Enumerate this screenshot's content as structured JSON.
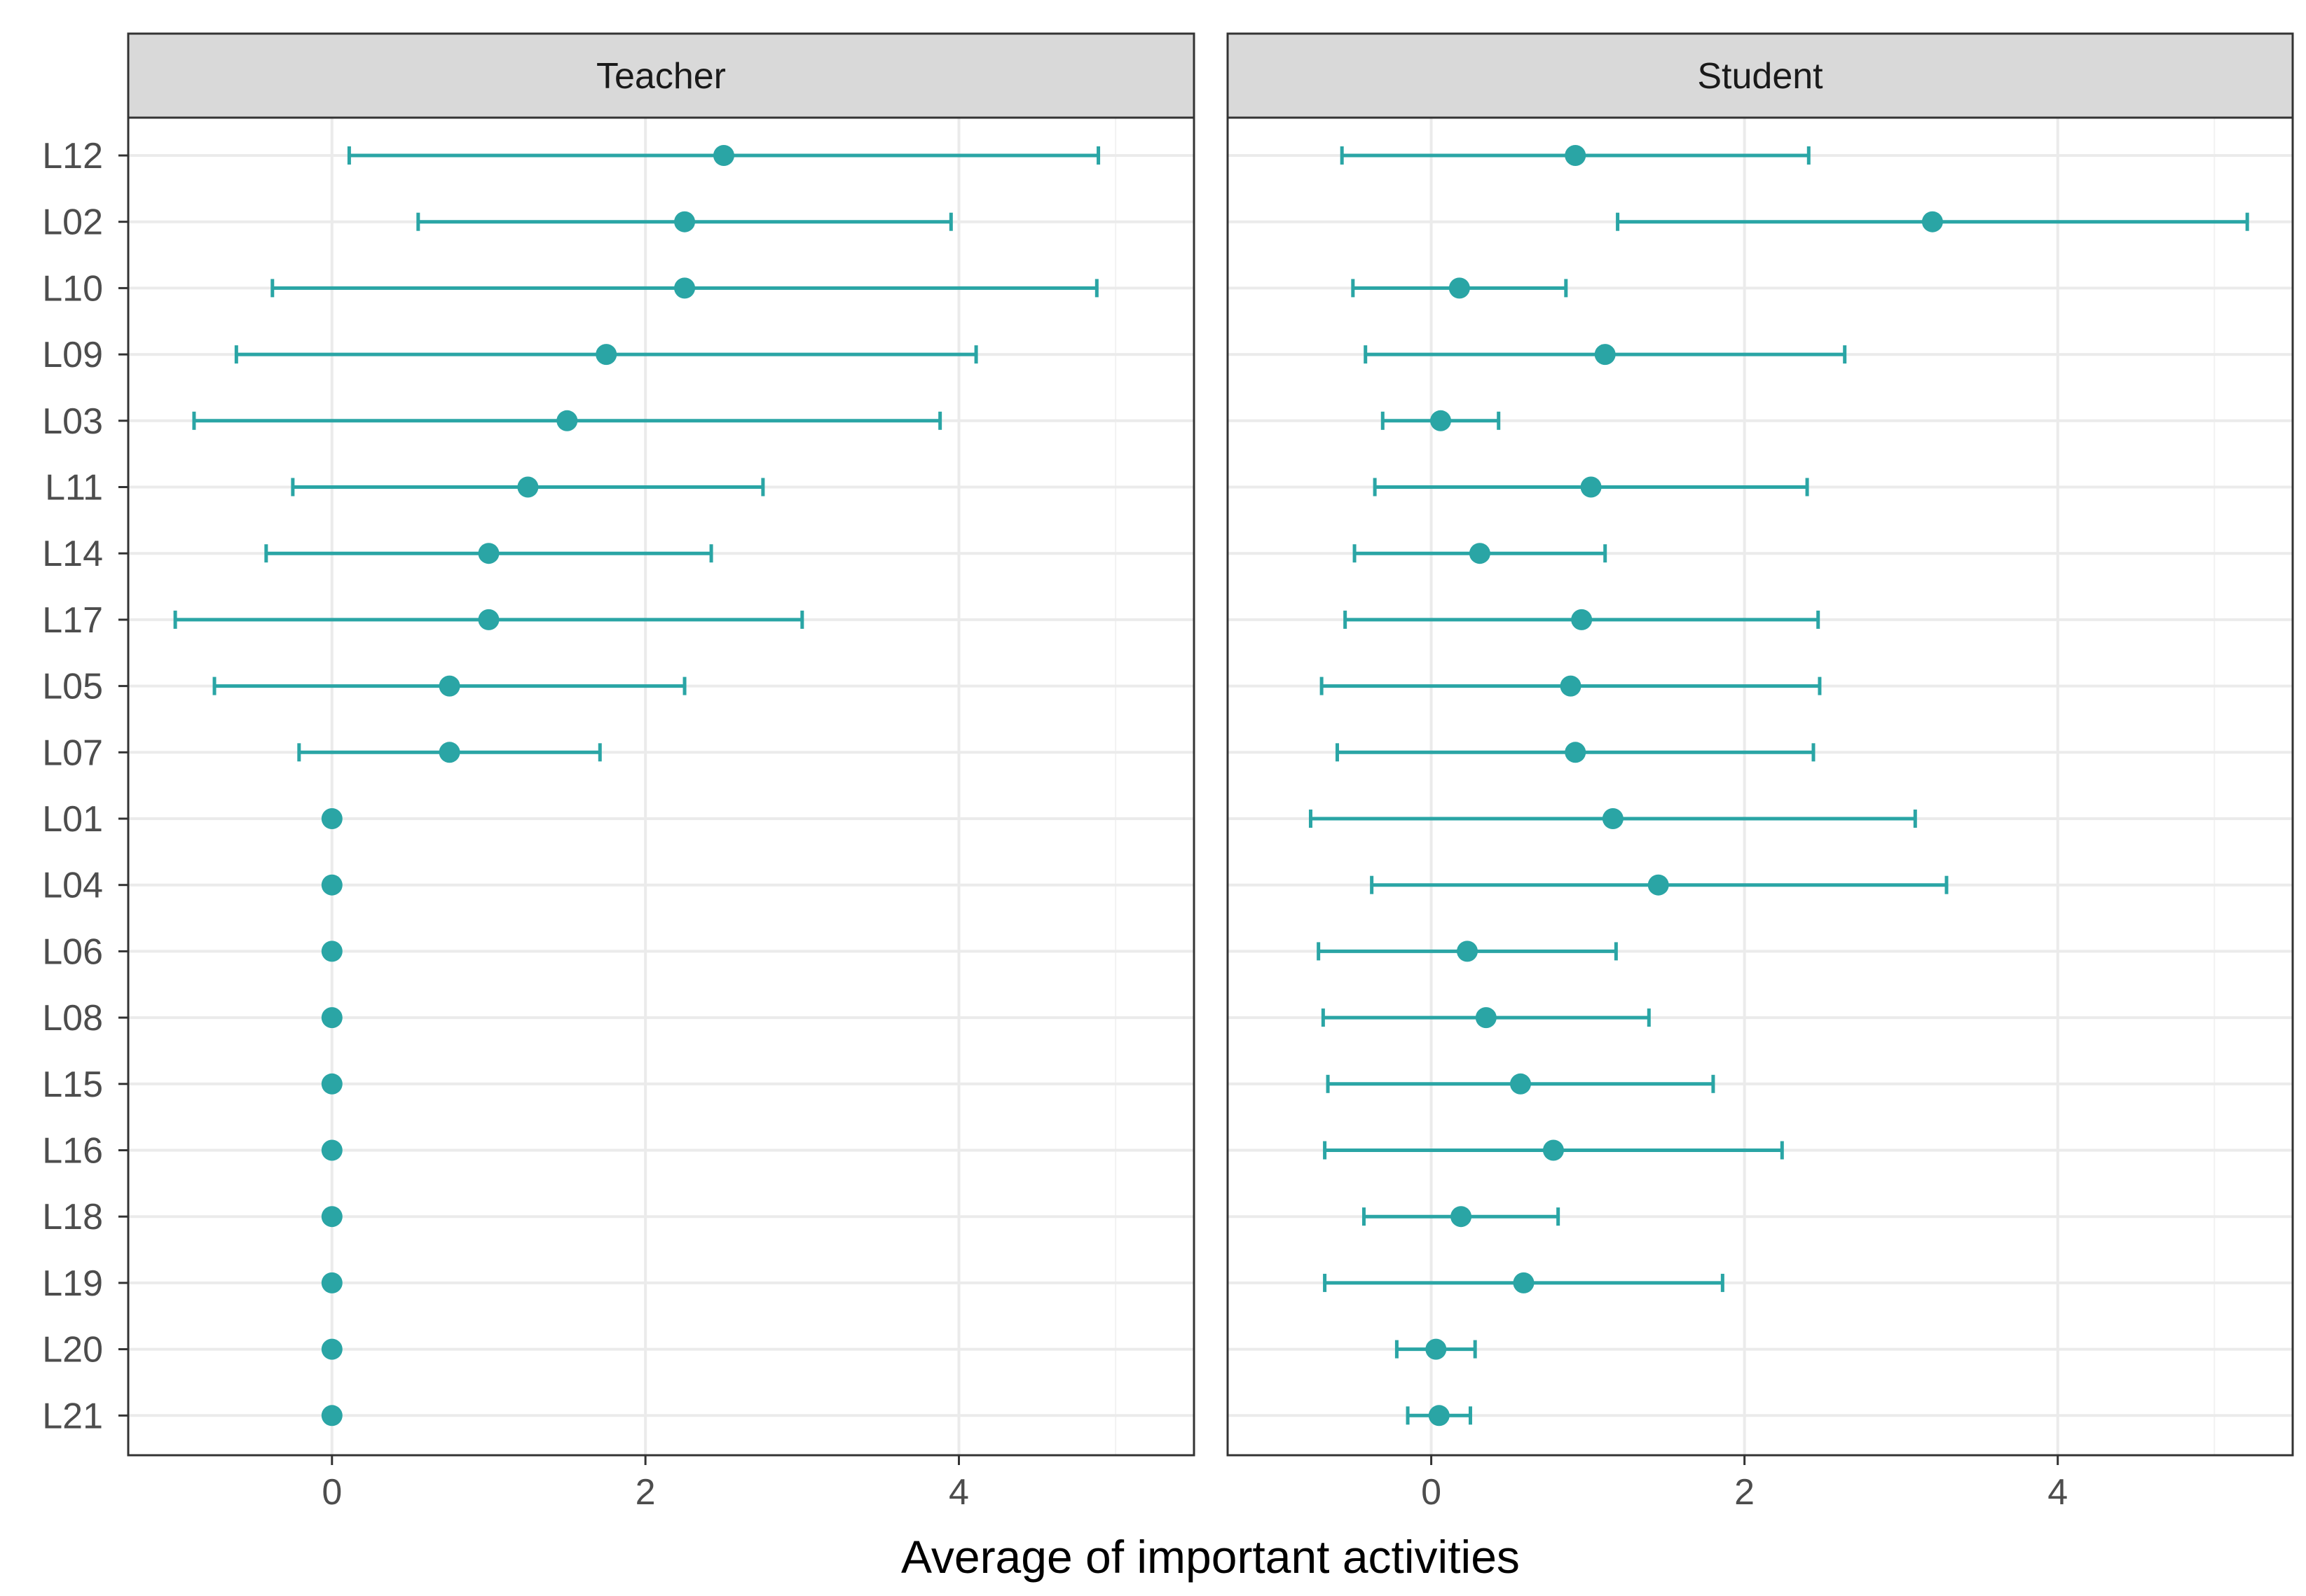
{
  "chart_data": {
    "type": "dot-errorbar",
    "xlabel": "Average of important activities",
    "xlim": [
      -1.3,
      5.5
    ],
    "xticks": [
      0,
      2,
      4
    ],
    "xtick_labels": [
      "0",
      "2",
      "4"
    ],
    "grid": true,
    "categories": [
      "L12",
      "L02",
      "L10",
      "L09",
      "L03",
      "L11",
      "L14",
      "L17",
      "L05",
      "L07",
      "L01",
      "L04",
      "L06",
      "L08",
      "L15",
      "L16",
      "L18",
      "L19",
      "L20",
      "L21"
    ],
    "color": "#2aa5a5",
    "panels": [
      {
        "name": "Teacher",
        "points": [
          {
            "label": "L12",
            "mean": 2.5,
            "lower": 0.11,
            "upper": 4.89
          },
          {
            "label": "L02",
            "mean": 2.25,
            "lower": 0.55,
            "upper": 3.95
          },
          {
            "label": "L10",
            "mean": 2.25,
            "lower": -0.38,
            "upper": 4.88
          },
          {
            "label": "L09",
            "mean": 1.75,
            "lower": -0.61,
            "upper": 4.11
          },
          {
            "label": "L03",
            "mean": 1.5,
            "lower": -0.88,
            "upper": 3.88
          },
          {
            "label": "L11",
            "mean": 1.25,
            "lower": -0.25,
            "upper": 2.75
          },
          {
            "label": "L14",
            "mean": 1.0,
            "lower": -0.42,
            "upper": 2.42
          },
          {
            "label": "L17",
            "mean": 1.0,
            "lower": -1.0,
            "upper": 3.0
          },
          {
            "label": "L05",
            "mean": 0.75,
            "lower": -0.75,
            "upper": 2.25
          },
          {
            "label": "L07",
            "mean": 0.75,
            "lower": -0.21,
            "upper": 1.71
          },
          {
            "label": "L01",
            "mean": 0.0,
            "lower": null,
            "upper": null
          },
          {
            "label": "L04",
            "mean": 0.0,
            "lower": null,
            "upper": null
          },
          {
            "label": "L06",
            "mean": 0.0,
            "lower": null,
            "upper": null
          },
          {
            "label": "L08",
            "mean": 0.0,
            "lower": null,
            "upper": null
          },
          {
            "label": "L15",
            "mean": 0.0,
            "lower": null,
            "upper": null
          },
          {
            "label": "L16",
            "mean": 0.0,
            "lower": null,
            "upper": null
          },
          {
            "label": "L18",
            "mean": 0.0,
            "lower": null,
            "upper": null
          },
          {
            "label": "L19",
            "mean": 0.0,
            "lower": null,
            "upper": null
          },
          {
            "label": "L20",
            "mean": 0.0,
            "lower": null,
            "upper": null
          },
          {
            "label": "L21",
            "mean": 0.0,
            "lower": null,
            "upper": null
          }
        ]
      },
      {
        "name": "Student",
        "points": [
          {
            "label": "L12",
            "mean": 0.92,
            "lower": -0.57,
            "upper": 2.41
          },
          {
            "label": "L02",
            "mean": 3.2,
            "lower": 1.19,
            "upper": 5.21
          },
          {
            "label": "L10",
            "mean": 0.18,
            "lower": -0.5,
            "upper": 0.86
          },
          {
            "label": "L09",
            "mean": 1.11,
            "lower": -0.42,
            "upper": 2.64
          },
          {
            "label": "L03",
            "mean": 0.06,
            "lower": -0.31,
            "upper": 0.43
          },
          {
            "label": "L11",
            "mean": 1.02,
            "lower": -0.36,
            "upper": 2.4
          },
          {
            "label": "L14",
            "mean": 0.31,
            "lower": -0.49,
            "upper": 1.11
          },
          {
            "label": "L17",
            "mean": 0.96,
            "lower": -0.55,
            "upper": 2.47
          },
          {
            "label": "L05",
            "mean": 0.89,
            "lower": -0.7,
            "upper": 2.48
          },
          {
            "label": "L07",
            "mean": 0.92,
            "lower": -0.6,
            "upper": 2.44
          },
          {
            "label": "L01",
            "mean": 1.16,
            "lower": -0.77,
            "upper": 3.09
          },
          {
            "label": "L04",
            "mean": 1.45,
            "lower": -0.38,
            "upper": 3.29
          },
          {
            "label": "L06",
            "mean": 0.23,
            "lower": -0.72,
            "upper": 1.18
          },
          {
            "label": "L08",
            "mean": 0.35,
            "lower": -0.69,
            "upper": 1.39
          },
          {
            "label": "L15",
            "mean": 0.57,
            "lower": -0.66,
            "upper": 1.8
          },
          {
            "label": "L16",
            "mean": 0.78,
            "lower": -0.68,
            "upper": 2.24
          },
          {
            "label": "L18",
            "mean": 0.19,
            "lower": -0.43,
            "upper": 0.81
          },
          {
            "label": "L19",
            "mean": 0.59,
            "lower": -0.68,
            "upper": 1.86
          },
          {
            "label": "L20",
            "mean": 0.03,
            "lower": -0.22,
            "upper": 0.28
          },
          {
            "label": "L21",
            "mean": 0.05,
            "lower": -0.15,
            "upper": 0.25
          }
        ]
      }
    ]
  }
}
